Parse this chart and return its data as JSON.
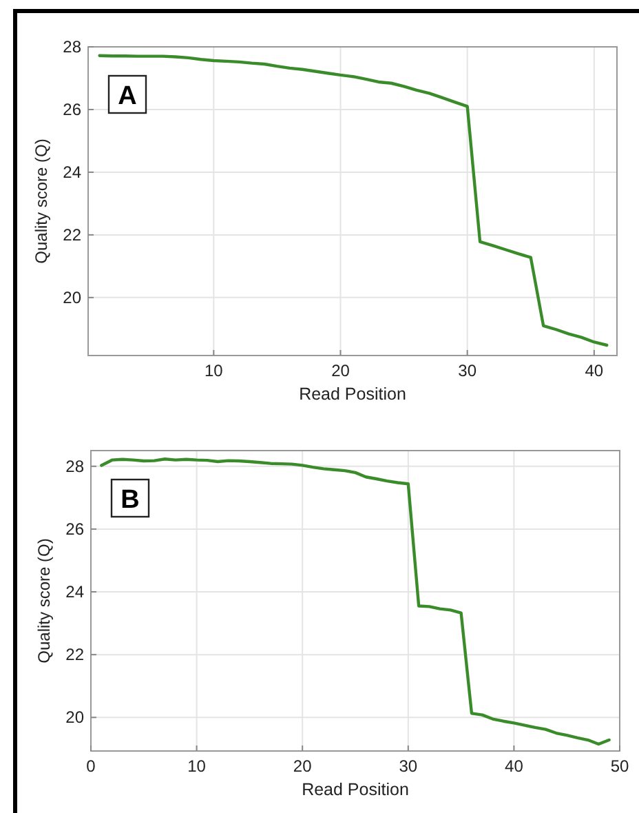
{
  "chart_data": [
    {
      "type": "line",
      "xlabel": "Read Position",
      "ylabel": "Quality score (Q)",
      "annotations": [
        "A"
      ],
      "xlim": [
        0.1,
        41.8
      ],
      "xticks": [
        10,
        20,
        30,
        40
      ],
      "ylim": [
        18.15,
        28.0
      ],
      "yticks": [
        20,
        22,
        24,
        26,
        28
      ],
      "grid": true,
      "x": [
        1,
        2,
        3,
        4,
        5,
        6,
        7,
        8,
        9,
        10,
        11,
        12,
        13,
        14,
        15,
        16,
        17,
        18,
        19,
        20,
        21,
        22,
        23,
        24,
        25,
        26,
        27,
        28,
        29,
        30,
        31,
        32,
        33,
        34,
        35,
        36,
        37,
        38,
        39,
        40,
        41
      ],
      "series": [
        {
          "color": "#3a8c2a",
          "values": [
            27.72,
            27.71,
            27.71,
            27.7,
            27.7,
            27.7,
            27.68,
            27.65,
            27.6,
            27.56,
            27.54,
            27.52,
            27.48,
            27.45,
            27.38,
            27.32,
            27.28,
            27.22,
            27.16,
            27.1,
            27.05,
            26.97,
            26.88,
            26.84,
            26.74,
            26.62,
            26.52,
            26.38,
            26.24,
            26.1,
            21.78,
            21.66,
            21.53,
            21.4,
            21.28,
            19.1,
            18.98,
            18.84,
            18.73,
            18.58,
            18.48
          ]
        }
      ]
    },
    {
      "type": "line",
      "xlabel": "Read Position",
      "ylabel": "Quality score (Q)",
      "annotations": [
        "B"
      ],
      "xlim": [
        0,
        50
      ],
      "xticks": [
        0,
        10,
        20,
        30,
        40,
        50
      ],
      "ylim": [
        18.93,
        28.5
      ],
      "yticks": [
        20,
        22,
        24,
        26,
        28
      ],
      "grid": true,
      "x": [
        1,
        2,
        3,
        4,
        5,
        6,
        7,
        8,
        9,
        10,
        11,
        12,
        13,
        14,
        15,
        16,
        17,
        18,
        19,
        20,
        21,
        22,
        23,
        24,
        25,
        26,
        27,
        28,
        29,
        30,
        31,
        32,
        33,
        34,
        35,
        36,
        37,
        38,
        39,
        40,
        41,
        42,
        43,
        44,
        45,
        46,
        47,
        48,
        49
      ],
      "series": [
        {
          "color": "#3a8c2a",
          "values": [
            28.03,
            28.2,
            28.22,
            28.2,
            28.17,
            28.18,
            28.23,
            28.2,
            28.22,
            28.2,
            28.19,
            28.15,
            28.18,
            28.17,
            28.15,
            28.12,
            28.09,
            28.08,
            28.07,
            28.03,
            27.97,
            27.92,
            27.89,
            27.86,
            27.8,
            27.66,
            27.6,
            27.53,
            27.48,
            27.44,
            23.55,
            23.53,
            23.46,
            23.42,
            23.33,
            20.13,
            20.08,
            19.95,
            19.88,
            19.82,
            19.75,
            19.68,
            19.62,
            19.5,
            19.43,
            19.35,
            19.28,
            19.15,
            19.28
          ]
        }
      ]
    }
  ]
}
